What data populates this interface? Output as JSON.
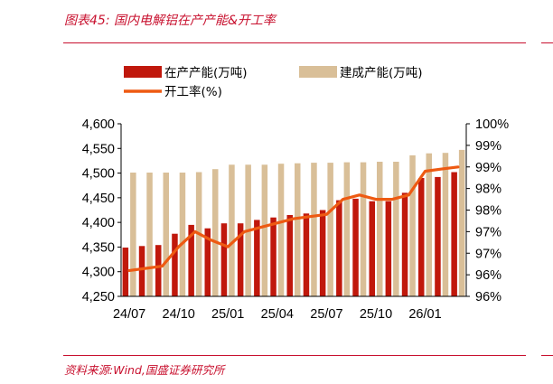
{
  "figure": {
    "title": "图表45:  国内电解铝在产产能&开工率",
    "source": "资料来源:Wind,国盛证券研究所"
  },
  "colors": {
    "accent": "#c8102e",
    "in_production": "#c0180c",
    "built_capacity": "#d9bf98",
    "utilization": "#ee5a12"
  },
  "chart_data": {
    "type": "bar",
    "x": [
      "24/07",
      "24/08",
      "24/09",
      "24/10",
      "24/11",
      "24/12",
      "25/01",
      "25/02",
      "25/03",
      "25/04",
      "25/05",
      "25/06",
      "25/07",
      "25/08",
      "25/09",
      "25/10",
      "25/11",
      "25/12",
      "26/01",
      "26/02",
      "26/03"
    ],
    "xticks": [
      "24/07",
      "24/10",
      "25/01",
      "25/04",
      "25/07",
      "25/10",
      "26/01"
    ],
    "series": [
      {
        "name": "在产产能(万吨)",
        "type": "bar",
        "axis": "left",
        "values": [
          4349,
          4352,
          4354,
          4377,
          4395,
          4388,
          4398,
          4398,
          4405,
          4410,
          4415,
          4418,
          4425,
          4445,
          4448,
          4443,
          4443,
          4460,
          4490,
          4492,
          4502
        ]
      },
      {
        "name": "建成产能(万吨)",
        "type": "bar",
        "axis": "left",
        "values": [
          4501,
          4501,
          4501,
          4501,
          4502,
          4508,
          4517,
          4517,
          4517,
          4519,
          4520,
          4521,
          4521,
          4522,
          4522,
          4523,
          4523,
          4536,
          4540,
          4541,
          4547
        ]
      },
      {
        "name": "开工率(%)",
        "type": "line",
        "axis": "right",
        "values": [
          96.6,
          96.65,
          96.7,
          97.15,
          97.5,
          97.3,
          97.15,
          97.5,
          97.6,
          97.7,
          97.8,
          97.85,
          97.9,
          98.25,
          98.35,
          98.25,
          98.25,
          98.35,
          98.9,
          98.95,
          99.0
        ]
      }
    ],
    "left_axis": {
      "ylim": [
        4250,
        4600
      ],
      "ticks": [
        "4,250",
        "4,300",
        "4,350",
        "4,400",
        "4,450",
        "4,500",
        "4,550",
        "4,600"
      ]
    },
    "right_axis": {
      "ylim": [
        96,
        100
      ],
      "ticks": [
        "96%",
        "96%",
        "97%",
        "97%",
        "98%",
        "98%",
        "99%",
        "99%",
        "100%"
      ]
    },
    "legend": "top",
    "grid": false
  }
}
